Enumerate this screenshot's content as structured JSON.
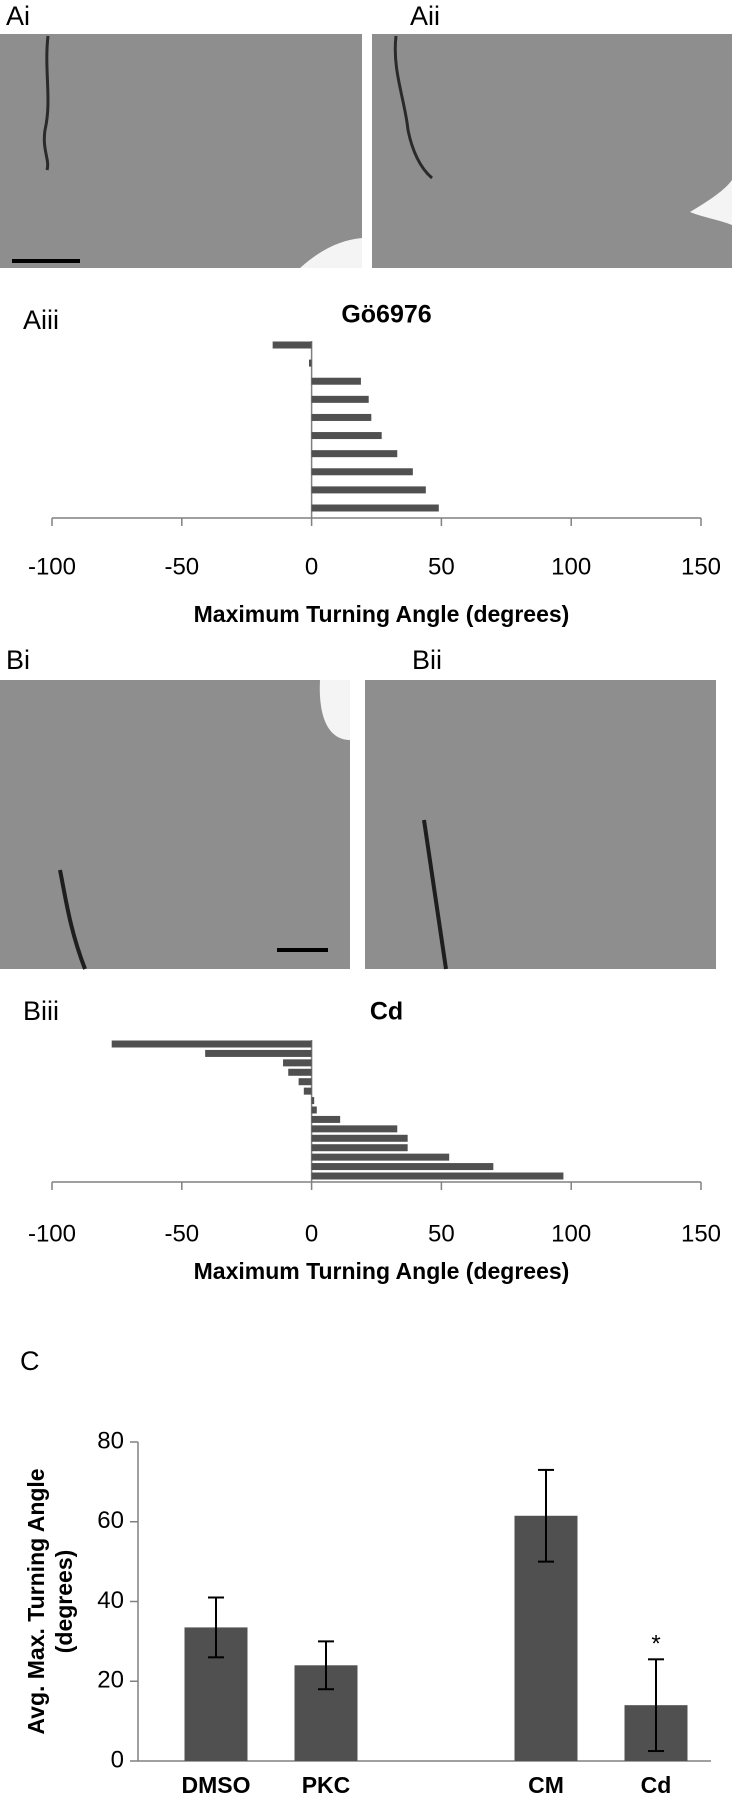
{
  "panel_labels": [
    "Ai",
    "Aii",
    "Bi",
    "Bii"
  ],
  "chart_data": [
    {
      "type": "hbar",
      "label": "Aiii",
      "title": "Gö6976",
      "values": [
        -15,
        -1,
        19,
        22,
        23,
        27,
        33,
        39,
        44,
        49
      ],
      "color": "#505050",
      "xlim": [
        -100,
        150
      ],
      "xticks": [
        -100,
        -50,
        0,
        50,
        100,
        150
      ],
      "x_label": "Maximum Turning Angle (degrees)"
    },
    {
      "type": "hbar",
      "label": "Biii",
      "title": "Cd",
      "values": [
        -77,
        -41,
        -11,
        -9,
        -5,
        -3,
        1,
        2,
        11,
        33,
        37,
        37,
        53,
        70,
        97
      ],
      "color": "#505050",
      "xlim": [
        -100,
        150
      ],
      "xticks": [
        -100,
        -50,
        0,
        50,
        100,
        150
      ],
      "x_label": "Maximum Turning Angle (degrees)"
    },
    {
      "type": "bar",
      "label": "C",
      "categories": [
        "DMSO",
        "PKC",
        null,
        "CM",
        "Cd"
      ],
      "values": [
        33.5,
        24,
        null,
        61.5,
        14
      ],
      "errors": [
        7.5,
        6,
        null,
        11.5,
        11.5
      ],
      "annotations": [
        {
          "category": 4,
          "text": "*"
        }
      ],
      "color": "#505050",
      "ylim": [
        0,
        80
      ],
      "yticks": [
        0,
        20,
        40,
        60,
        80
      ],
      "y_label": [
        "Avg. Max. Turning Angle",
        "(degrees)"
      ]
    }
  ]
}
